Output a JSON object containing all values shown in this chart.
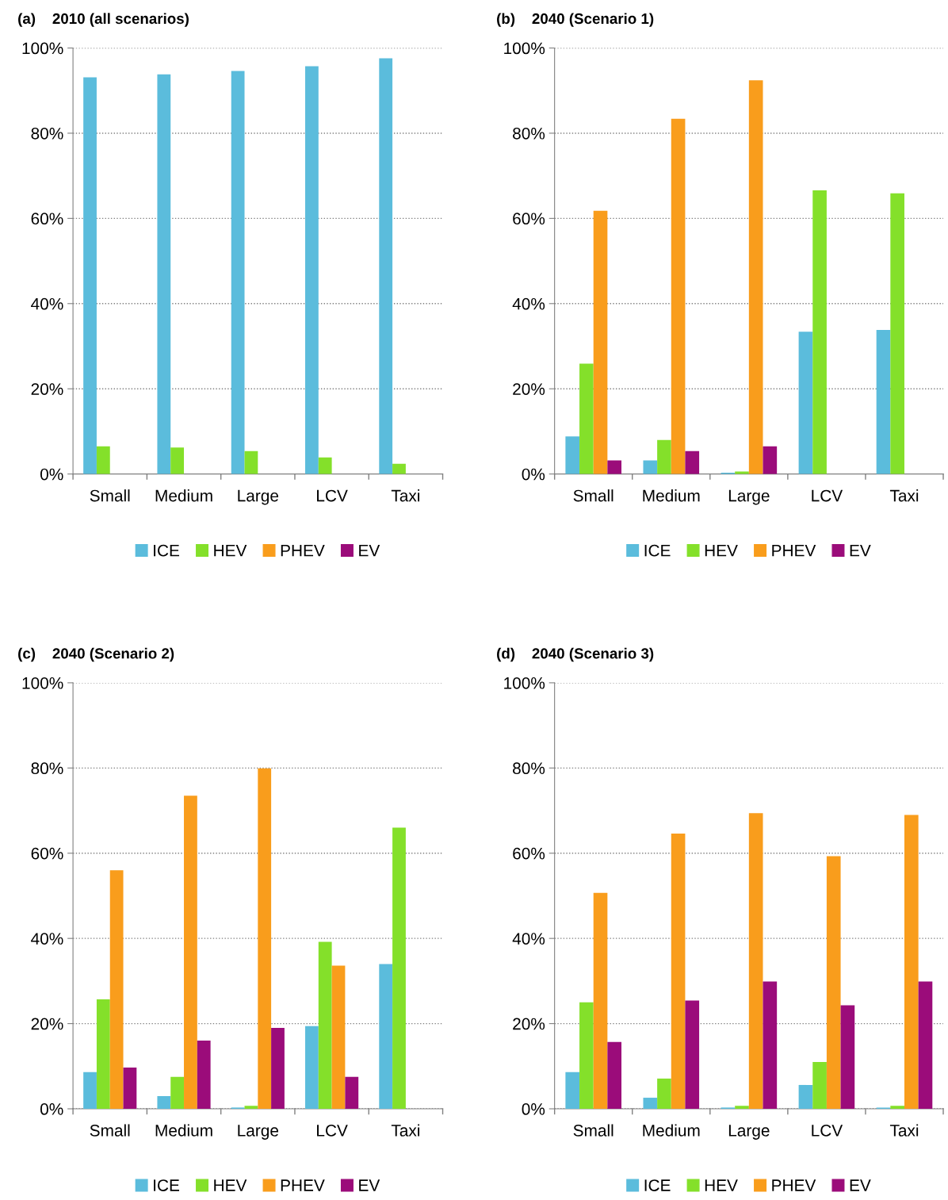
{
  "chart_data": [
    {
      "type": "bar",
      "title": "(a)    2010 (all scenarios)",
      "categories": [
        "Small",
        "Medium",
        "Large",
        "LCV",
        "Taxi"
      ],
      "ylim": [
        0,
        100
      ],
      "yticks": [
        {
          "value": 0,
          "label": "0%"
        },
        {
          "value": 20,
          "label": "20%"
        },
        {
          "value": 40,
          "label": "40%"
        },
        {
          "value": 60,
          "label": "60%"
        },
        {
          "value": 80,
          "label": "80%"
        },
        {
          "value": 100,
          "label": "100%"
        }
      ],
      "grid": "y",
      "legend": "bottom",
      "series": [
        {
          "name": "ICE",
          "color": "#5bbcdc",
          "values": [
            93.1,
            93.8,
            94.6,
            95.7,
            97.6
          ]
        },
        {
          "name": "HEV",
          "color": "#84e02a",
          "values": [
            6.5,
            6.2,
            5.4,
            3.9,
            2.4
          ]
        },
        {
          "name": "PHEV",
          "color": "#f99d1c",
          "values": [
            0,
            0,
            0,
            0,
            0
          ]
        },
        {
          "name": "EV",
          "color": "#9b0c7a",
          "values": [
            0,
            0,
            0,
            0,
            0
          ]
        }
      ]
    },
    {
      "type": "bar",
      "title": "(b)    2040 (Scenario 1)",
      "categories": [
        "Small",
        "Medium",
        "Large",
        "LCV",
        "Taxi"
      ],
      "ylim": [
        0,
        100
      ],
      "yticks": [
        {
          "value": 0,
          "label": "0%"
        },
        {
          "value": 20,
          "label": "20%"
        },
        {
          "value": 40,
          "label": "40%"
        },
        {
          "value": 60,
          "label": "60%"
        },
        {
          "value": 80,
          "label": "80%"
        },
        {
          "value": 100,
          "label": "100%"
        }
      ],
      "grid": "y",
      "legend": "bottom",
      "series": [
        {
          "name": "ICE",
          "color": "#5bbcdc",
          "values": [
            8.8,
            3.2,
            0.3,
            33.4,
            33.8
          ]
        },
        {
          "name": "HEV",
          "color": "#84e02a",
          "values": [
            25.9,
            8.0,
            0.6,
            66.6,
            65.9
          ]
        },
        {
          "name": "PHEV",
          "color": "#f99d1c",
          "values": [
            61.8,
            83.4,
            92.4,
            0,
            0
          ]
        },
        {
          "name": "EV",
          "color": "#9b0c7a",
          "values": [
            3.2,
            5.4,
            6.5,
            0,
            0
          ]
        }
      ]
    },
    {
      "type": "bar",
      "title": "(c)    2040 (Scenario 2)",
      "categories": [
        "Small",
        "Medium",
        "Large",
        "LCV",
        "Taxi"
      ],
      "ylim": [
        0,
        100
      ],
      "yticks": [
        {
          "value": 0,
          "label": "0%"
        },
        {
          "value": 20,
          "label": "20%"
        },
        {
          "value": 40,
          "label": "40%"
        },
        {
          "value": 60,
          "label": "60%"
        },
        {
          "value": 80,
          "label": "80%"
        },
        {
          "value": 100,
          "label": "100%"
        }
      ],
      "grid": "y",
      "legend": "bottom",
      "series": [
        {
          "name": "ICE",
          "color": "#5bbcdc",
          "values": [
            8.6,
            3.0,
            0.3,
            19.4,
            34.0
          ]
        },
        {
          "name": "HEV",
          "color": "#84e02a",
          "values": [
            25.7,
            7.5,
            0.7,
            39.2,
            66.0
          ]
        },
        {
          "name": "PHEV",
          "color": "#f99d1c",
          "values": [
            56.0,
            73.5,
            79.9,
            33.6,
            0
          ]
        },
        {
          "name": "EV",
          "color": "#9b0c7a",
          "values": [
            9.7,
            16.0,
            19.0,
            7.5,
            0
          ]
        }
      ]
    },
    {
      "type": "bar",
      "title": "(d)    2040 (Scenario 3)",
      "categories": [
        "Small",
        "Medium",
        "Large",
        "LCV",
        "Taxi"
      ],
      "ylim": [
        0,
        100
      ],
      "yticks": [
        {
          "value": 0,
          "label": "0%"
        },
        {
          "value": 20,
          "label": "20%"
        },
        {
          "value": 40,
          "label": "40%"
        },
        {
          "value": 60,
          "label": "60%"
        },
        {
          "value": 80,
          "label": "80%"
        },
        {
          "value": 100,
          "label": "100%"
        }
      ],
      "grid": "y",
      "legend": "bottom",
      "series": [
        {
          "name": "ICE",
          "color": "#5bbcdc",
          "values": [
            8.6,
            2.6,
            0.3,
            5.6,
            0.3
          ]
        },
        {
          "name": "HEV",
          "color": "#84e02a",
          "values": [
            25.0,
            7.1,
            0.7,
            11.0,
            0.7
          ]
        },
        {
          "name": "PHEV",
          "color": "#f99d1c",
          "values": [
            50.7,
            64.6,
            69.4,
            59.3,
            69.0
          ]
        },
        {
          "name": "EV",
          "color": "#9b0c7a",
          "values": [
            15.7,
            25.4,
            29.9,
            24.3,
            29.9
          ]
        }
      ]
    }
  ]
}
